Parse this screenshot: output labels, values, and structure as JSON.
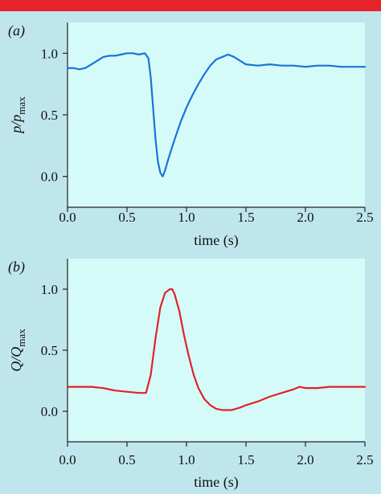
{
  "top_bar_color": "#e5232b",
  "background_color": "#bfe6ec",
  "plot_background_color": "#d5fbf8",
  "chart_data": [
    {
      "type": "line",
      "panel_label": "(a)",
      "xlabel": "time (s)",
      "ylabel_main": "p/p",
      "ylabel_sub": "max",
      "xlim": [
        0,
        2.5
      ],
      "ylim": [
        -0.25,
        1.25
      ],
      "xticks": [
        0,
        0.5,
        1.0,
        1.5,
        2.0,
        2.5
      ],
      "xtick_labels": [
        "0.0",
        "0.5",
        "1.0",
        "1.5",
        "2.0",
        "2.5"
      ],
      "yticks": [
        0,
        0.5,
        1.0
      ],
      "ytick_labels": [
        "0.0",
        "0.5",
        "1.0"
      ],
      "grid": false,
      "series": [
        {
          "color": "#1a73d9",
          "x": [
            0.0,
            0.05,
            0.1,
            0.15,
            0.2,
            0.25,
            0.3,
            0.35,
            0.4,
            0.45,
            0.5,
            0.55,
            0.6,
            0.65,
            0.68,
            0.7,
            0.72,
            0.74,
            0.76,
            0.78,
            0.8,
            0.82,
            0.85,
            0.9,
            0.95,
            1.0,
            1.05,
            1.1,
            1.15,
            1.2,
            1.25,
            1.3,
            1.35,
            1.4,
            1.45,
            1.5,
            1.6,
            1.7,
            1.8,
            1.9,
            2.0,
            2.1,
            2.2,
            2.3,
            2.4,
            2.5
          ],
          "y": [
            0.88,
            0.88,
            0.87,
            0.88,
            0.91,
            0.94,
            0.97,
            0.98,
            0.98,
            0.99,
            1.0,
            1.0,
            0.99,
            1.0,
            0.96,
            0.8,
            0.55,
            0.3,
            0.12,
            0.03,
            0.0,
            0.05,
            0.15,
            0.3,
            0.44,
            0.56,
            0.66,
            0.75,
            0.83,
            0.9,
            0.95,
            0.97,
            0.99,
            0.97,
            0.94,
            0.91,
            0.9,
            0.91,
            0.9,
            0.9,
            0.89,
            0.9,
            0.9,
            0.89,
            0.89,
            0.89
          ]
        }
      ]
    },
    {
      "type": "line",
      "panel_label": "(b)",
      "xlabel": "time (s)",
      "ylabel_main": "Q/Q",
      "ylabel_sub": "max",
      "xlim": [
        0,
        2.5
      ],
      "ylim": [
        -0.25,
        1.25
      ],
      "xticks": [
        0,
        0.5,
        1.0,
        1.5,
        2.0,
        2.5
      ],
      "xtick_labels": [
        "0.0",
        "0.5",
        "1.0",
        "1.5",
        "2.0",
        "2.5"
      ],
      "yticks": [
        0,
        0.5,
        1.0
      ],
      "ytick_labels": [
        "0.0",
        "0.5",
        "1.0"
      ],
      "grid": false,
      "series": [
        {
          "color": "#e0222a",
          "x": [
            0.0,
            0.1,
            0.2,
            0.3,
            0.4,
            0.5,
            0.6,
            0.66,
            0.7,
            0.74,
            0.78,
            0.82,
            0.86,
            0.88,
            0.9,
            0.94,
            0.98,
            1.02,
            1.06,
            1.1,
            1.15,
            1.2,
            1.25,
            1.3,
            1.35,
            1.38,
            1.45,
            1.5,
            1.6,
            1.7,
            1.8,
            1.9,
            1.95,
            2.0,
            2.1,
            2.2,
            2.3,
            2.4,
            2.5
          ],
          "y": [
            0.2,
            0.2,
            0.2,
            0.19,
            0.17,
            0.16,
            0.15,
            0.15,
            0.3,
            0.6,
            0.85,
            0.97,
            1.0,
            1.0,
            0.96,
            0.82,
            0.62,
            0.45,
            0.3,
            0.19,
            0.1,
            0.05,
            0.02,
            0.01,
            0.01,
            0.01,
            0.03,
            0.05,
            0.08,
            0.12,
            0.15,
            0.18,
            0.2,
            0.19,
            0.19,
            0.2,
            0.2,
            0.2,
            0.2
          ]
        }
      ]
    }
  ]
}
